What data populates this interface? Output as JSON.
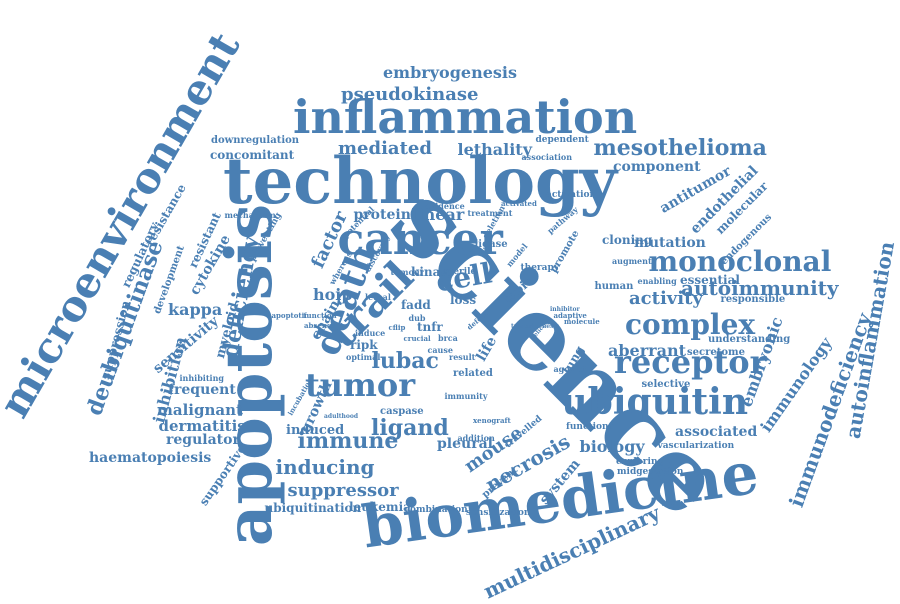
{
  "accent_color": "#4a7fb3",
  "words": [
    {
      "id": "science",
      "text": "science"
    },
    {
      "id": "technology",
      "text": "technology"
    },
    {
      "id": "biomedicine",
      "text": "biomedicine"
    },
    {
      "id": "inflammation",
      "text": "inflammation"
    },
    {
      "id": "apoptosis",
      "text": "apoptosis"
    },
    {
      "id": "microenvironment",
      "text": "microenvironment"
    },
    {
      "id": "cancer",
      "text": "cancer"
    },
    {
      "id": "trail",
      "text": "trail"
    },
    {
      "id": "death",
      "text": "death"
    },
    {
      "id": "ubiquitin",
      "text": "ubiquitin"
    },
    {
      "id": "tumor",
      "text": "tumor"
    },
    {
      "id": "receptor",
      "text": "receptor"
    },
    {
      "id": "complex",
      "text": "complex"
    },
    {
      "id": "monoclonal",
      "text": "monoclonal"
    },
    {
      "id": "deubiquitinase",
      "text": "deubiquitinase"
    },
    {
      "id": "mesothelioma",
      "text": "mesothelioma"
    },
    {
      "id": "autoinflammation",
      "text": "autoinflammation"
    },
    {
      "id": "immunodeficiency",
      "text": "immunodeficiency"
    },
    {
      "id": "multidisciplinary",
      "text": "multidisciplinary"
    },
    {
      "id": "embryogenesis",
      "text": "embryogenesis"
    },
    {
      "id": "pseudokinase",
      "text": "pseudokinase"
    },
    {
      "id": "mediated",
      "text": "mediated"
    },
    {
      "id": "lethality",
      "text": "lethality"
    },
    {
      "id": "immune",
      "text": "immune"
    },
    {
      "id": "ligand",
      "text": "ligand"
    },
    {
      "id": "inducing",
      "text": "inducing"
    },
    {
      "id": "suppressor",
      "text": "suppressor"
    },
    {
      "id": "lubac",
      "text": "lubac"
    },
    {
      "id": "cell",
      "text": "cell"
    },
    {
      "id": "deficiency",
      "text": "deficiency"
    },
    {
      "id": "necrosis",
      "text": "necrosis"
    },
    {
      "id": "mouse",
      "text": "mouse"
    },
    {
      "id": "autoimmunity",
      "text": "autoimmunity"
    },
    {
      "id": "activity",
      "text": "activity"
    },
    {
      "id": "aberrant",
      "text": "aberrant"
    },
    {
      "id": "mutation",
      "text": "mutation"
    },
    {
      "id": "kappa",
      "text": "kappa"
    },
    {
      "id": "malignant",
      "text": "malignant"
    },
    {
      "id": "dermatitis",
      "text": "dermatitis"
    },
    {
      "id": "regulator",
      "text": "regulator"
    },
    {
      "id": "haematopoiesis",
      "text": "haematopoiesis"
    },
    {
      "id": "frequent",
      "text": "frequent"
    },
    {
      "id": "inhibition",
      "text": "inhibition"
    },
    {
      "id": "sensitivity",
      "text": "sensitivity"
    },
    {
      "id": "cytokine",
      "text": "cytokine"
    },
    {
      "id": "regulatory",
      "text": "regulatory"
    },
    {
      "id": "resistance",
      "text": "resistance"
    },
    {
      "id": "suppression",
      "text": "suppression"
    },
    {
      "id": "resistant",
      "text": "resistant"
    },
    {
      "id": "development",
      "text": "development"
    },
    {
      "id": "myeloid",
      "text": "myeloid"
    },
    {
      "id": "protein",
      "text": "protein"
    },
    {
      "id": "linear",
      "text": "linear"
    },
    {
      "id": "factor",
      "text": "factor"
    },
    {
      "id": "hoip",
      "text": "hoip"
    },
    {
      "id": "chain",
      "text": "chain"
    },
    {
      "id": "growth",
      "text": "growth"
    },
    {
      "id": "induced",
      "text": "induced"
    },
    {
      "id": "kinase",
      "text": "kinase"
    },
    {
      "id": "ripk",
      "text": "ripk"
    },
    {
      "id": "fadd",
      "text": "fadd"
    },
    {
      "id": "tnfr",
      "text": "tnfr"
    },
    {
      "id": "loss",
      "text": "loss"
    },
    {
      "id": "biology",
      "text": "biology"
    },
    {
      "id": "associated",
      "text": "associated"
    },
    {
      "id": "system",
      "text": "system"
    },
    {
      "id": "pleural",
      "text": "pleural"
    },
    {
      "id": "life",
      "text": "life"
    },
    {
      "id": "component",
      "text": "component"
    },
    {
      "id": "antitumor",
      "text": "antitumor"
    },
    {
      "id": "endothelial",
      "text": "endothelial"
    },
    {
      "id": "molecular",
      "text": "molecular"
    },
    {
      "id": "endogenous",
      "text": "endogenous"
    },
    {
      "id": "cloning",
      "text": "cloning"
    },
    {
      "id": "essential",
      "text": "essential"
    },
    {
      "id": "responsible",
      "text": "responsible"
    },
    {
      "id": "understanding",
      "text": "understanding"
    },
    {
      "id": "secretome",
      "text": "secretome"
    },
    {
      "id": "selective",
      "text": "selective"
    },
    {
      "id": "embryonic",
      "text": "embryonic"
    },
    {
      "id": "immunology",
      "text": "immunology"
    },
    {
      "id": "concomitant",
      "text": "concomitant"
    },
    {
      "id": "downregulation",
      "text": "downregulation"
    },
    {
      "id": "supportive",
      "text": "supportive"
    },
    {
      "id": "ubiquitination",
      "text": "ubiquitination"
    },
    {
      "id": "leukemia",
      "text": "leukemia"
    },
    {
      "id": "caspase",
      "text": "caspase"
    },
    {
      "id": "human",
      "text": "human"
    },
    {
      "id": "topic",
      "text": "topic"
    },
    {
      "id": "lung",
      "text": "lung"
    },
    {
      "id": "promote",
      "text": "promote"
    },
    {
      "id": "related",
      "text": "related"
    },
    {
      "id": "vascularization",
      "text": "vascularization"
    },
    {
      "id": "exploring",
      "text": "exploring"
    },
    {
      "id": "functional",
      "text": "functional"
    },
    {
      "id": "midgestation",
      "text": "midgestation"
    },
    {
      "id": "combination",
      "text": "combination"
    },
    {
      "id": "sensitization",
      "text": "sensitization"
    },
    {
      "id": "travelled",
      "text": "travelled"
    },
    {
      "id": "prevent",
      "text": "prevent"
    },
    {
      "id": "activation",
      "text": "activation"
    },
    {
      "id": "dependent",
      "text": "dependent"
    },
    {
      "id": "association",
      "text": "association"
    },
    {
      "id": "evidence",
      "text": "evidence"
    },
    {
      "id": "mechanism",
      "text": "mechanism"
    },
    {
      "id": "preventing",
      "text": "preventing"
    },
    {
      "id": "inhibiting",
      "text": "inhibiting"
    },
    {
      "id": "apoptotic",
      "text": "apoptotic"
    },
    {
      "id": "function",
      "text": "function"
    },
    {
      "id": "absence",
      "text": "absence"
    },
    {
      "id": "sterile",
      "text": "sterile"
    },
    {
      "id": "therapy",
      "text": "therapy"
    },
    {
      "id": "pathway",
      "text": "pathway"
    },
    {
      "id": "adaptive",
      "text": "adaptive"
    },
    {
      "id": "molecule",
      "text": "molecule"
    },
    {
      "id": "inhibitor",
      "text": "inhibitor"
    },
    {
      "id": "enabling",
      "text": "enabling"
    },
    {
      "id": "augment",
      "text": "augment"
    },
    {
      "id": "agonist",
      "text": "agonist"
    },
    {
      "id": "tumour",
      "text": "tumour"
    },
    {
      "id": "whereas",
      "text": "whereas"
    },
    {
      "id": "potential",
      "text": "potential"
    },
    {
      "id": "discovery",
      "text": "discovery"
    },
    {
      "id": "optimal",
      "text": "optimal"
    },
    {
      "id": "lethal",
      "text": "lethal"
    },
    {
      "id": "result",
      "text": "result"
    },
    {
      "id": "immunity",
      "text": "immunity"
    },
    {
      "id": "addition",
      "text": "addition"
    },
    {
      "id": "xenograft",
      "text": "xenograft"
    },
    {
      "id": "deletion",
      "text": "deletion"
    },
    {
      "id": "treatment",
      "text": "treatment"
    },
    {
      "id": "brca",
      "text": "brca"
    },
    {
      "id": "cause",
      "text": "cause"
    },
    {
      "id": "induce",
      "text": "induce"
    },
    {
      "id": "defect",
      "text": "defect"
    },
    {
      "id": "cflip",
      "text": "cflip"
    },
    {
      "id": "ligase",
      "text": "ligase"
    },
    {
      "id": "dub",
      "text": "dub"
    },
    {
      "id": "model",
      "text": "model"
    },
    {
      "id": "elicit",
      "text": "elicit"
    },
    {
      "id": "adulthood",
      "text": "adulthood"
    },
    {
      "id": "incubation",
      "text": "incubation"
    },
    {
      "id": "activated",
      "text": "activated"
    },
    {
      "id": "crucial",
      "text": "crucial"
    },
    {
      "id": "tumorigenesis",
      "text": "tumorigenesis"
    }
  ]
}
